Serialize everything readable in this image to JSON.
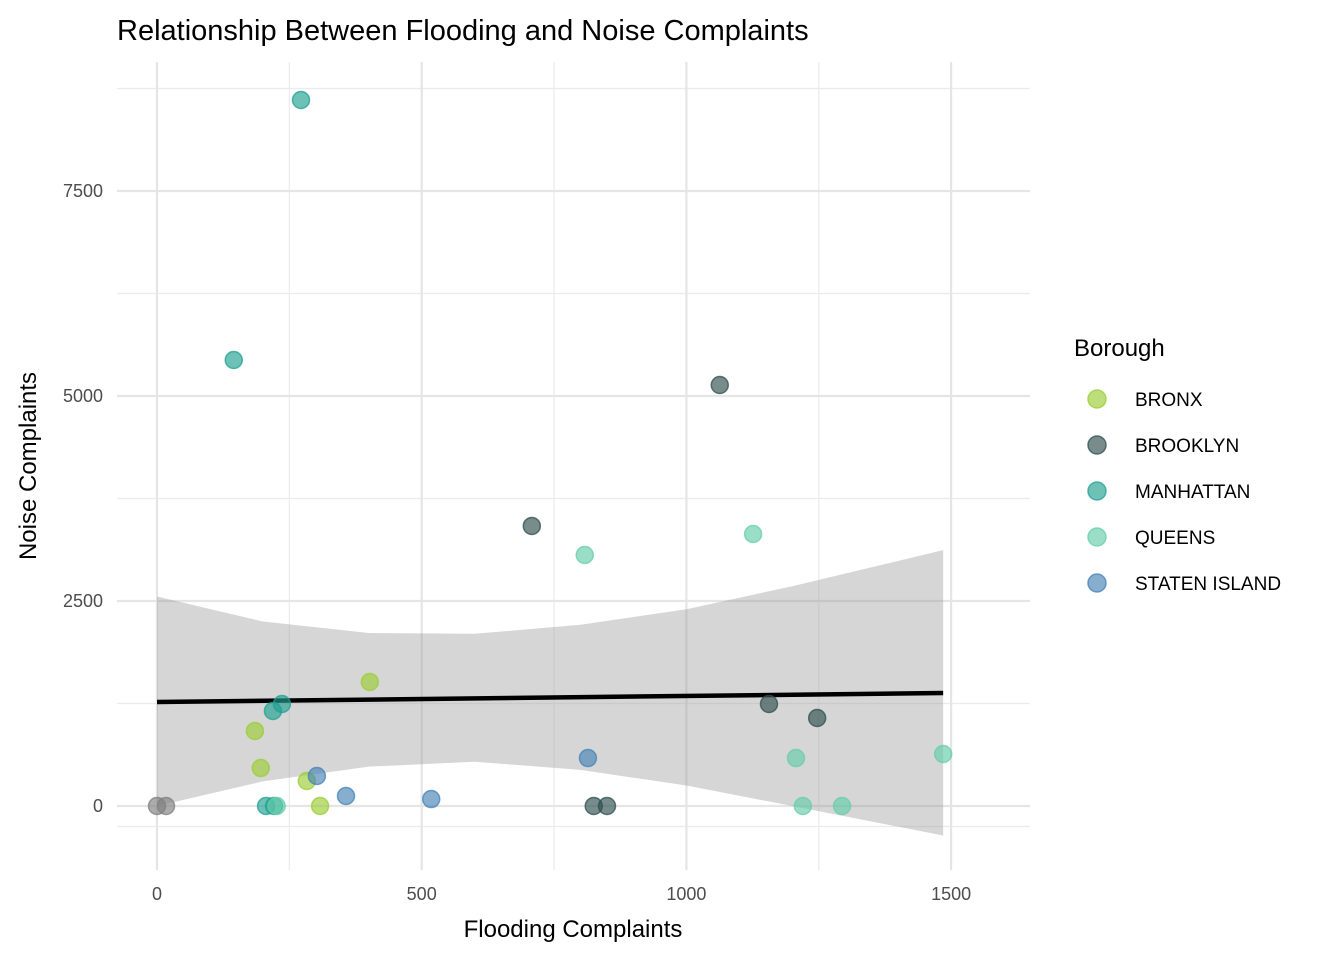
{
  "chart_data": {
    "type": "scatter",
    "title": "Relationship Between Flooding and Noise Complaints",
    "xlabel": "Flooding Complaints",
    "ylabel": "Noise Complaints",
    "xlim": [
      -70,
      1650
    ],
    "ylim": [
      -800,
      8900
    ],
    "xticks": [
      0,
      500,
      1000,
      1500
    ],
    "yticks": [
      0,
      2500,
      5000,
      7500
    ],
    "xtick_labels": [
      "0",
      "500",
      "1000",
      "1500"
    ],
    "ytick_labels": [
      "0",
      "2500",
      "5000",
      "7500"
    ],
    "grid": true,
    "legend": {
      "title": "Borough",
      "position": "right"
    },
    "series": [
      {
        "name": "BRONX",
        "color": "#9acd32",
        "x": [
          402,
          185,
          196,
          283,
          308
        ],
        "y": [
          1512,
          915,
          463,
          305,
          0
        ]
      },
      {
        "name": "BROOKLYN",
        "color": "#2f4f4f",
        "x": [
          1063,
          708,
          1156,
          1247,
          825,
          850
        ],
        "y": [
          5134,
          3415,
          1244,
          1073,
          0,
          0
        ]
      },
      {
        "name": "MANHATTAN",
        "color": "#20a090",
        "x": [
          272,
          145,
          236,
          219,
          206,
          221
        ],
        "y": [
          8610,
          5439,
          1244,
          1159,
          0,
          0
        ]
      },
      {
        "name": "QUEENS",
        "color": "#66cdaa",
        "x": [
          808,
          1126,
          1485,
          1207,
          1220,
          1294,
          226
        ],
        "y": [
          3061,
          3317,
          634,
          585,
          0,
          0,
          0
        ]
      },
      {
        "name": "STATEN ISLAND",
        "color": "#4682b4",
        "x": [
          814,
          302,
          357,
          518
        ],
        "y": [
          585,
          366,
          122,
          85
        ]
      },
      {
        "color": "#7f7f7f",
        "x": [
          0,
          17
        ],
        "y": [
          0,
          0
        ]
      }
    ],
    "trend_line": {
      "method": "linear",
      "x": [
        0,
        1485
      ],
      "y": [
        1268,
        1378
      ]
    },
    "confidence_band": {
      "x": [
        0,
        200,
        400,
        600,
        800,
        1000,
        1200,
        1485
      ],
      "upper": [
        2555,
        2250,
        2110,
        2100,
        2210,
        2400,
        2680,
        3120
      ],
      "lower": [
        0,
        300,
        480,
        540,
        440,
        250,
        0,
        -360
      ]
    }
  }
}
